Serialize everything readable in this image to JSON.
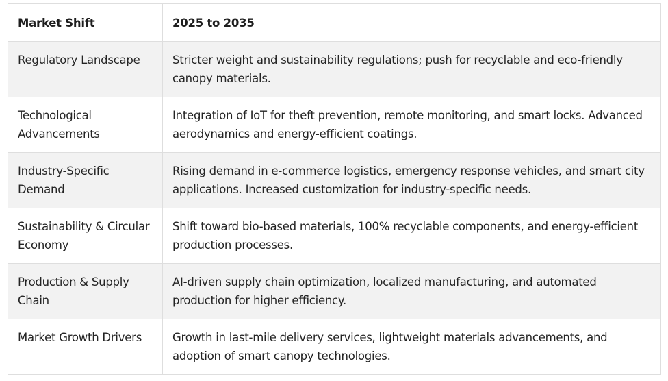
{
  "table": {
    "headers": [
      "Market Shift",
      "2025 to 2035"
    ],
    "rows": [
      [
        "Regulatory Landscape",
        "Stricter weight and sustainability regulations; push for recyclable and eco-friendly canopy materials."
      ],
      [
        "Technological Advancements",
        "Integration of IoT for theft prevention, remote monitoring, and smart locks. Advanced aerodynamics and energy-efficient coatings."
      ],
      [
        "Industry-Specific Demand",
        "Rising demand in e-commerce logistics, emergency response vehicles, and smart city applications. Increased customization for industry-specific needs."
      ],
      [
        "Sustainability & Circular Economy",
        "Shift toward bio-based materials, 100% recyclable components, and energy-efficient production processes."
      ],
      [
        "Production & Supply Chain",
        "AI-driven supply chain optimization, localized manufacturing, and automated production for higher efficiency."
      ],
      [
        "Market Growth Drivers",
        "Growth in last-mile delivery services, lightweight materials advancements, and adoption of smart canopy technologies."
      ]
    ]
  }
}
